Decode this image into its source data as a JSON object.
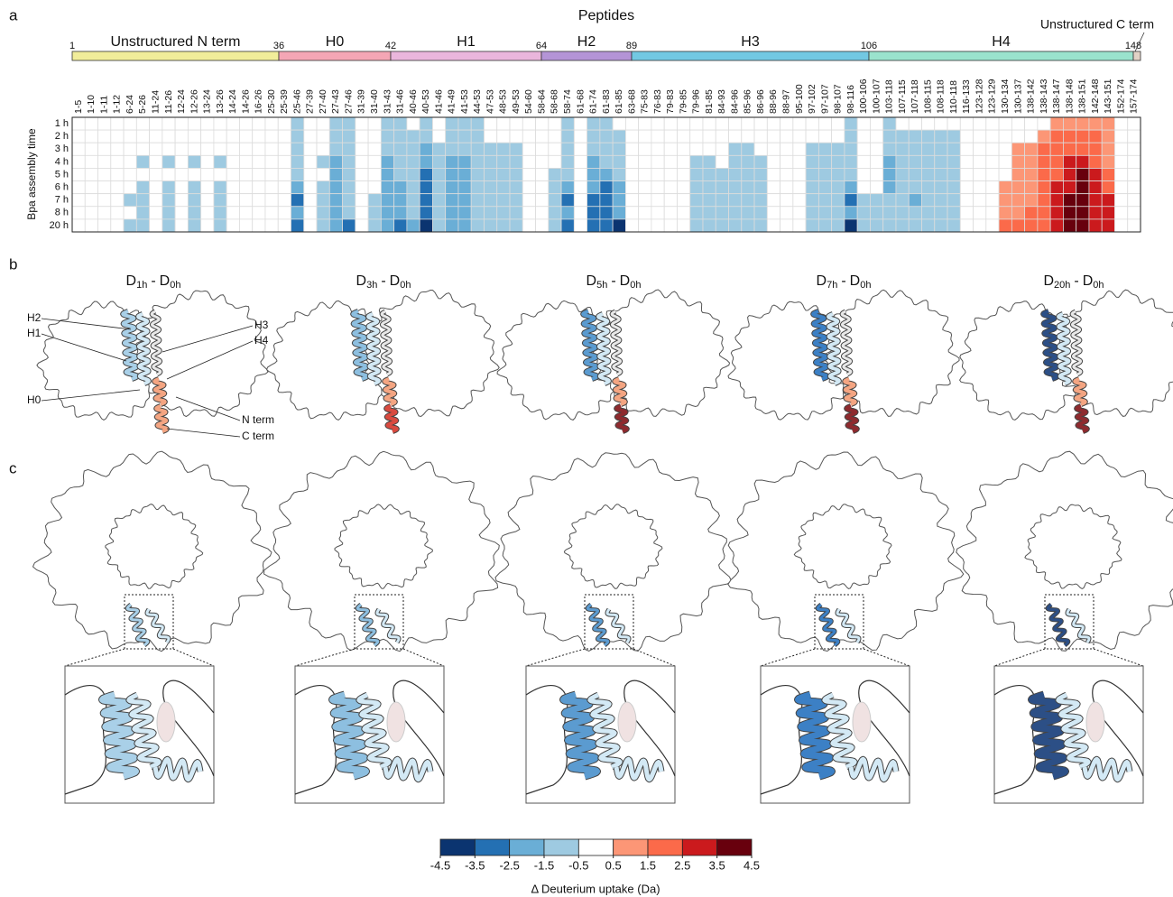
{
  "panel_labels": [
    "a",
    "b",
    "c"
  ],
  "chart_data": {
    "type": "heatmap",
    "title": "Peptides",
    "y_label": "Bpa assembly time",
    "categories": [
      "1-5",
      "1-10",
      "1-11",
      "1-12",
      "6-24",
      "5-26",
      "11-24",
      "11-26",
      "12-24",
      "12-26",
      "13-24",
      "13-26",
      "14-24",
      "14-26",
      "16-26",
      "25-30",
      "25-39",
      "25-46",
      "27-39",
      "27-40",
      "27-43",
      "27-46",
      "31-39",
      "31-40",
      "31-43",
      "31-46",
      "40-46",
      "40-53",
      "41-46",
      "41-49",
      "41-53",
      "44-53",
      "47-53",
      "48-53",
      "49-53",
      "54-60",
      "58-64",
      "58-68",
      "58-74",
      "61-68",
      "61-74",
      "61-83",
      "61-85",
      "63-68",
      "75-83",
      "76-83",
      "79-83",
      "79-85",
      "79-96",
      "81-85",
      "84-93",
      "84-96",
      "85-96",
      "86-96",
      "88-96",
      "88-97",
      "95-100",
      "97-102",
      "97-107",
      "98-107",
      "98-116",
      "100-106",
      "100-107",
      "103-118",
      "107-115",
      "107-118",
      "108-115",
      "108-118",
      "110-118",
      "116-133",
      "123-128",
      "123-129",
      "130-134",
      "130-137",
      "138-142",
      "138-143",
      "138-147",
      "138-148",
      "138-151",
      "142-148",
      "143-151",
      "152-174",
      "157-174"
    ],
    "y_categories": [
      "1 h",
      "2 h",
      "3 h",
      "4 h",
      "5 h",
      "6 h",
      "7 h",
      "8 h",
      "20 h"
    ],
    "values": [
      [
        0,
        0,
        0,
        0,
        0,
        0,
        0,
        0,
        0
      ],
      [
        0,
        0,
        0,
        0,
        0,
        0,
        0,
        0,
        0
      ],
      [
        0,
        0,
        0,
        0,
        0,
        0,
        0,
        0,
        0
      ],
      [
        0,
        0,
        0,
        0,
        0,
        0,
        0,
        0,
        0
      ],
      [
        0,
        0,
        0,
        0,
        0,
        0,
        -1,
        0,
        -1
      ],
      [
        0,
        0,
        0,
        -1,
        0,
        -1,
        -1,
        -1,
        -1
      ],
      [
        0,
        0,
        0,
        0,
        0,
        0,
        0,
        0,
        0
      ],
      [
        0,
        0,
        0,
        -1,
        0,
        -1,
        -1,
        -1,
        -1
      ],
      [
        0,
        0,
        0,
        0,
        0,
        0,
        0,
        0,
        0
      ],
      [
        0,
        0,
        0,
        -1,
        0,
        -1,
        -1,
        -1,
        -1
      ],
      [
        0,
        0,
        0,
        0,
        0,
        0,
        0,
        0,
        0
      ],
      [
        0,
        0,
        0,
        -1,
        0,
        -1,
        -1,
        -1,
        -1
      ],
      [
        0,
        0,
        0,
        0,
        0,
        0,
        0,
        0,
        0
      ],
      [
        0,
        0,
        0,
        0,
        0,
        0,
        0,
        0,
        0
      ],
      [
        0,
        0,
        0,
        0,
        0,
        0,
        0,
        0,
        0
      ],
      [
        0,
        0,
        0,
        0,
        0,
        0,
        0,
        0,
        0
      ],
      [
        0,
        0,
        0,
        0,
        0,
        0,
        0,
        0,
        0
      ],
      [
        -1,
        -1,
        -1,
        -1,
        -1,
        -2,
        -3,
        -2,
        -3
      ],
      [
        0,
        0,
        0,
        0,
        0,
        0,
        0,
        0,
        0
      ],
      [
        0,
        0,
        0,
        -1,
        0,
        -1,
        -1,
        -1,
        -1
      ],
      [
        -1,
        -1,
        -1,
        -2,
        -2,
        -2,
        -2,
        -2,
        -2
      ],
      [
        -1,
        -1,
        -1,
        -1,
        -1,
        -1,
        -1,
        -1,
        -3
      ],
      [
        0,
        0,
        0,
        0,
        0,
        0,
        0,
        0,
        0
      ],
      [
        0,
        0,
        0,
        0,
        0,
        0,
        -1,
        -1,
        -1
      ],
      [
        -1,
        -1,
        -1,
        -2,
        -2,
        -2,
        -2,
        -2,
        -2
      ],
      [
        -1,
        -1,
        -1,
        -1,
        -1,
        -2,
        -2,
        -2,
        -3
      ],
      [
        0,
        -1,
        -1,
        -1,
        -1,
        -1,
        -1,
        -1,
        -2
      ],
      [
        -1,
        -1,
        -2,
        -2,
        -3,
        -3,
        -3,
        -3,
        -4
      ],
      [
        0,
        0,
        -1,
        -1,
        -1,
        -1,
        -1,
        -1,
        -1
      ],
      [
        -1,
        -1,
        -1,
        -2,
        -2,
        -2,
        -2,
        -2,
        -2
      ],
      [
        -1,
        -1,
        -1,
        -2,
        -2,
        -2,
        -2,
        -2,
        -2
      ],
      [
        -1,
        -1,
        -1,
        -1,
        -1,
        -1,
        -1,
        -1,
        -1
      ],
      [
        0,
        0,
        -1,
        -1,
        -1,
        -1,
        -1,
        -1,
        -1
      ],
      [
        0,
        0,
        -1,
        -1,
        -1,
        -1,
        -1,
        -1,
        -1
      ],
      [
        0,
        0,
        -1,
        -1,
        -1,
        -1,
        -1,
        -1,
        -1
      ],
      [
        0,
        0,
        0,
        0,
        0,
        0,
        0,
        0,
        0
      ],
      [
        0,
        0,
        0,
        0,
        0,
        0,
        0,
        0,
        0
      ],
      [
        0,
        0,
        0,
        0,
        -1,
        -1,
        -1,
        -1,
        -1
      ],
      [
        -1,
        -1,
        -1,
        -1,
        -1,
        -2,
        -3,
        -2,
        -3
      ],
      [
        0,
        0,
        0,
        0,
        0,
        0,
        0,
        0,
        0
      ],
      [
        -1,
        -1,
        -1,
        -2,
        -2,
        -2,
        -3,
        -3,
        -3
      ],
      [
        -1,
        -1,
        -1,
        -1,
        -2,
        -3,
        -3,
        -3,
        -3
      ],
      [
        0,
        -1,
        -1,
        -1,
        -1,
        -2,
        -2,
        -2,
        -4
      ],
      [
        0,
        0,
        0,
        0,
        0,
        0,
        0,
        0,
        0
      ],
      [
        0,
        0,
        0,
        0,
        0,
        0,
        0,
        0,
        0
      ],
      [
        0,
        0,
        0,
        0,
        0,
        0,
        0,
        0,
        0
      ],
      [
        0,
        0,
        0,
        0,
        0,
        0,
        0,
        0,
        0
      ],
      [
        0,
        0,
        0,
        0,
        0,
        0,
        0,
        0,
        0
      ],
      [
        0,
        0,
        0,
        -1,
        -1,
        -1,
        -1,
        -1,
        -1
      ],
      [
        0,
        0,
        0,
        -1,
        -1,
        -1,
        -1,
        -1,
        -1
      ],
      [
        0,
        0,
        0,
        0,
        -1,
        -1,
        -1,
        -1,
        -1
      ],
      [
        0,
        0,
        -1,
        -1,
        -1,
        -1,
        -1,
        -1,
        -1
      ],
      [
        0,
        0,
        -1,
        -1,
        -1,
        -1,
        -1,
        -1,
        -1
      ],
      [
        0,
        0,
        0,
        -1,
        -1,
        -1,
        -1,
        -1,
        -1
      ],
      [
        0,
        0,
        0,
        0,
        0,
        0,
        0,
        0,
        0
      ],
      [
        0,
        0,
        0,
        0,
        0,
        0,
        0,
        0,
        0
      ],
      [
        0,
        0,
        0,
        0,
        0,
        0,
        0,
        0,
        0
      ],
      [
        0,
        0,
        -1,
        -1,
        -1,
        -1,
        -1,
        -1,
        -1
      ],
      [
        0,
        0,
        -1,
        -1,
        -1,
        -1,
        -1,
        -1,
        -1
      ],
      [
        0,
        0,
        -1,
        -1,
        -1,
        -1,
        -1,
        -1,
        -1
      ],
      [
        -1,
        -1,
        -1,
        -1,
        -1,
        -2,
        -3,
        -2,
        -4
      ],
      [
        0,
        0,
        0,
        0,
        0,
        0,
        -1,
        -1,
        -1
      ],
      [
        0,
        0,
        0,
        0,
        0,
        0,
        -1,
        -1,
        -1
      ],
      [
        -1,
        -1,
        -1,
        -2,
        -2,
        -2,
        -1,
        -1,
        -1
      ],
      [
        0,
        -1,
        -1,
        -1,
        -1,
        -1,
        -1,
        -1,
        -1
      ],
      [
        0,
        -1,
        -1,
        -1,
        -1,
        -1,
        -2,
        -1,
        -1
      ],
      [
        0,
        -1,
        -1,
        -1,
        -1,
        -1,
        -1,
        -1,
        -1
      ],
      [
        0,
        -1,
        -1,
        -1,
        -1,
        -1,
        -1,
        -1,
        -1
      ],
      [
        0,
        -1,
        -1,
        -1,
        -1,
        -1,
        -1,
        -1,
        -1
      ],
      [
        0,
        0,
        0,
        0,
        0,
        0,
        0,
        0,
        0
      ],
      [
        0,
        0,
        0,
        0,
        0,
        0,
        0,
        0,
        0
      ],
      [
        0,
        0,
        0,
        0,
        0,
        0,
        0,
        0,
        0
      ],
      [
        0,
        0,
        0,
        0,
        0,
        1,
        1,
        1,
        2
      ],
      [
        0,
        0,
        1,
        1,
        1,
        1,
        1,
        1,
        2
      ],
      [
        0,
        0,
        1,
        1,
        1,
        1,
        1,
        2,
        2
      ],
      [
        0,
        1,
        2,
        2,
        2,
        2,
        2,
        2,
        2
      ],
      [
        1,
        2,
        2,
        2,
        2,
        3,
        3,
        3,
        3
      ],
      [
        1,
        2,
        2,
        3,
        3,
        3,
        4,
        4,
        4
      ],
      [
        1,
        2,
        2,
        3,
        4,
        4,
        4,
        4,
        4
      ],
      [
        1,
        2,
        2,
        2,
        3,
        3,
        3,
        3,
        3
      ],
      [
        1,
        1,
        1,
        1,
        2,
        2,
        3,
        3,
        3
      ],
      [
        0,
        0,
        0,
        0,
        0,
        0,
        0,
        0,
        0
      ],
      [
        0,
        0,
        0,
        0,
        0,
        0,
        0,
        0,
        0
      ]
    ],
    "regions": [
      {
        "name": "Unstructured N term",
        "start": 1,
        "color": "#f1ed9a"
      },
      {
        "name": "H0",
        "start": 36,
        "color": "#f4a6b5"
      },
      {
        "name": "H1",
        "start": 42,
        "color": "#eab6dc"
      },
      {
        "name": "H2",
        "start": 64,
        "color": "#b494d6"
      },
      {
        "name": "H3",
        "start": 89,
        "color": "#72c8e2"
      },
      {
        "name": "H4",
        "start": 106,
        "color": "#9ae3cd"
      },
      {
        "name": "Unstructured C term",
        "start": 148,
        "color": "#e2d2c6"
      }
    ],
    "colorbar": {
      "ticks": [
        -4.5,
        -3.5,
        -2.5,
        -1.5,
        -0.5,
        0.5,
        1.5,
        2.5,
        3.5,
        4.5
      ],
      "colors": [
        "#0b3470",
        "#2470b3",
        "#6aaed6",
        "#9ecae1",
        "#ffffff",
        "#fc9676",
        "#fb6a4a",
        "#cb1a1d",
        "#68000d"
      ],
      "label": "Δ Deuterium uptake (Da)"
    }
  },
  "panel_b": {
    "titles": [
      {
        "symbol": "D",
        "time": "1h",
        "minus": "-",
        "ref_symbol": "D",
        "ref": "0h"
      },
      {
        "symbol": "D",
        "time": "3h",
        "minus": "-",
        "ref_symbol": "D",
        "ref": "0h"
      },
      {
        "symbol": "D",
        "time": "5h",
        "minus": "-",
        "ref_symbol": "D",
        "ref": "0h"
      },
      {
        "symbol": "D",
        "time": "7h",
        "minus": "-",
        "ref_symbol": "D",
        "ref": "0h"
      },
      {
        "symbol": "D",
        "time": "20h",
        "minus": "-",
        "ref_symbol": "D",
        "ref": "0h"
      }
    ],
    "annotations": [
      "H2",
      "H1",
      "H0",
      "H3",
      "H4",
      "N term",
      "C term"
    ],
    "colors": [
      [
        "#a9d0e8",
        "#d3e9f5",
        "#f4a582",
        "#f4a582"
      ],
      [
        "#8dbfe0",
        "#d3e9f5",
        "#f4a582",
        "#d94a3f"
      ],
      [
        "#5b9bd0",
        "#d3e9f5",
        "#f4a582",
        "#8e2a2e"
      ],
      [
        "#3c80c5",
        "#d3e9f5",
        "#f4a582",
        "#8e2a2e"
      ],
      [
        "#2c4f86",
        "#d3e9f5",
        "#f4a582",
        "#8e2a2e"
      ]
    ]
  }
}
